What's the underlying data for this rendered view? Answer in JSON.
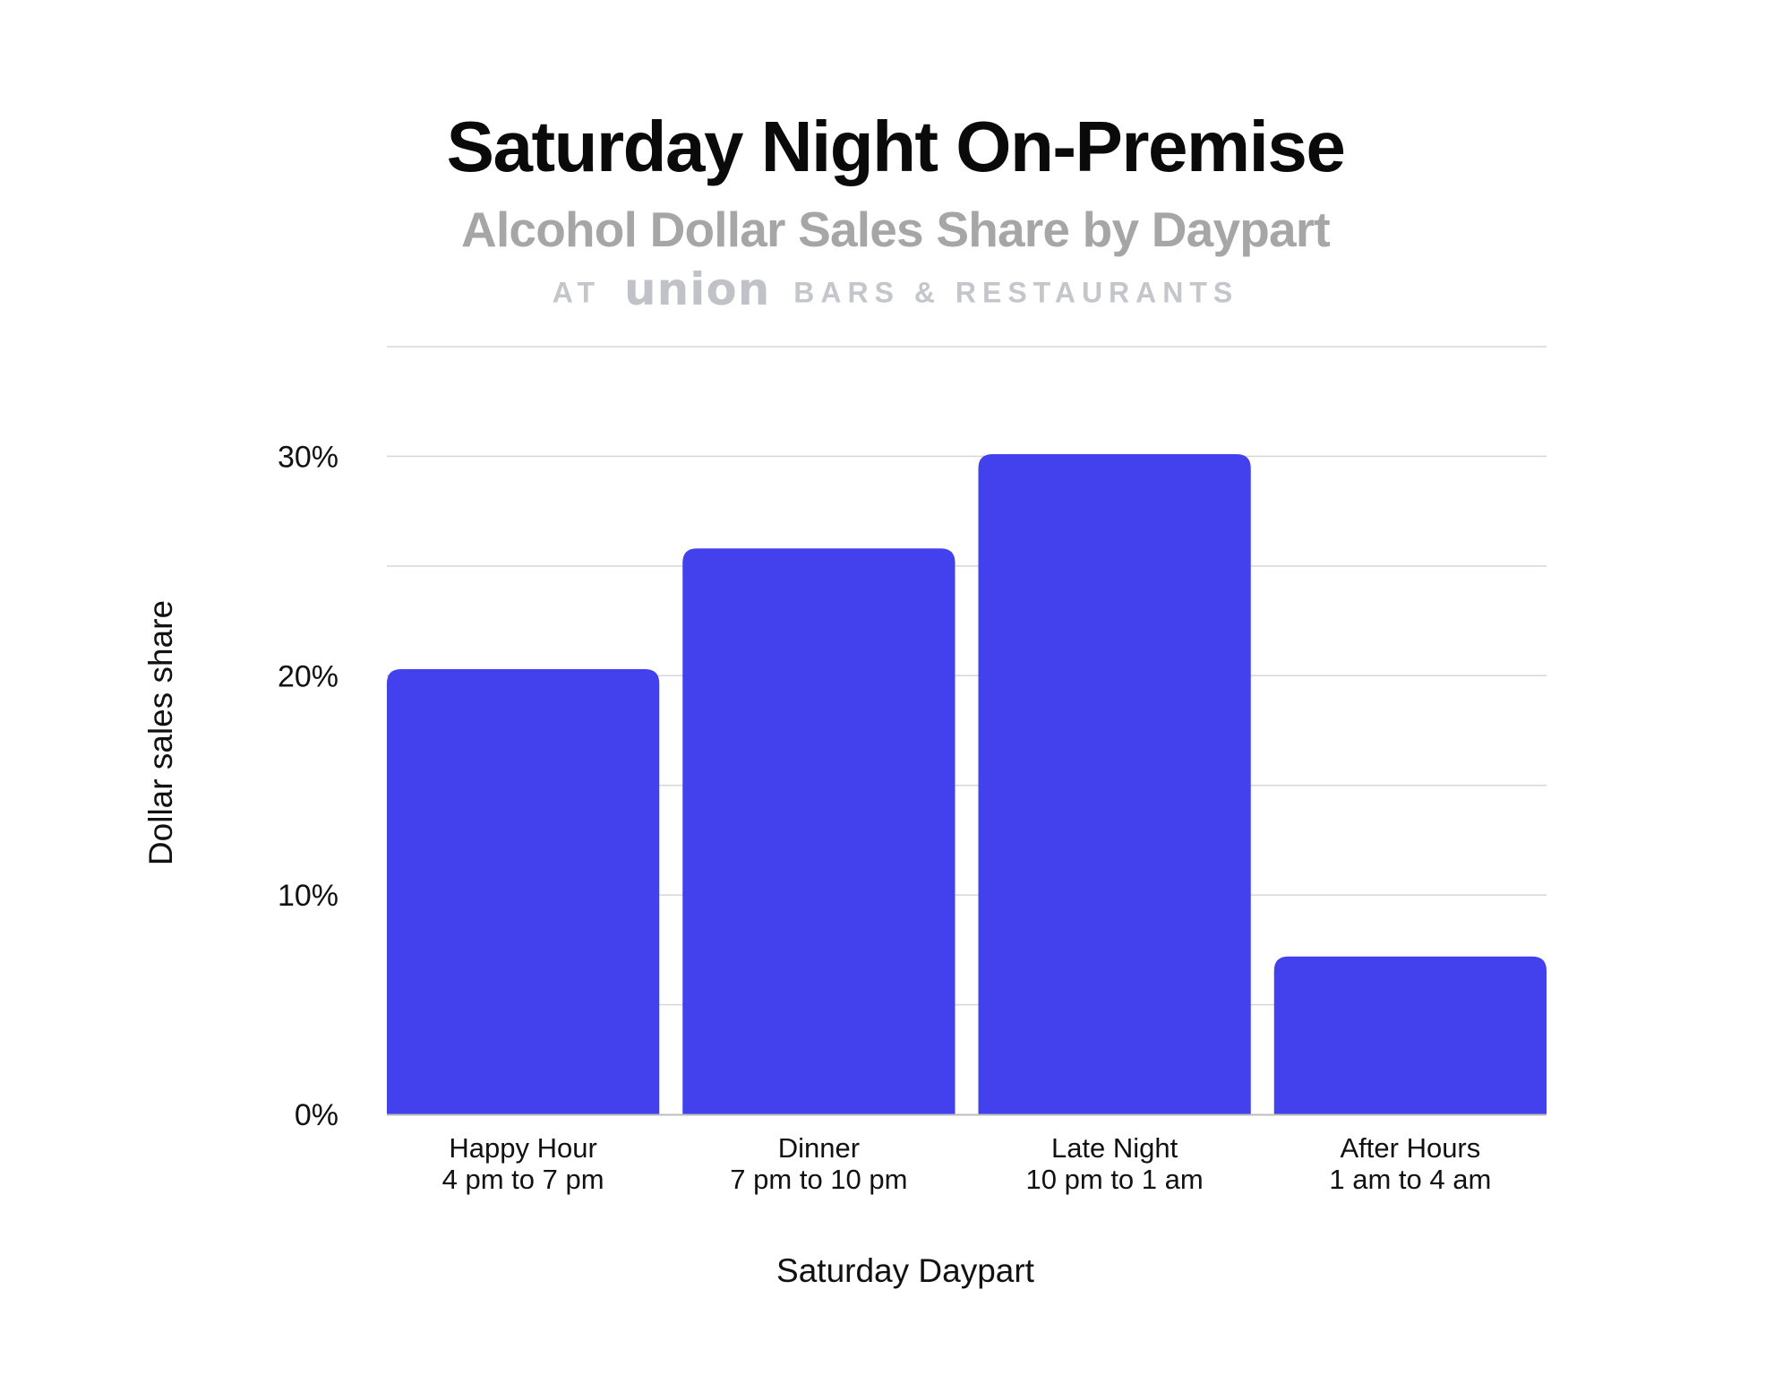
{
  "chart_data": {
    "type": "bar",
    "title": "Saturday Night On-Premise",
    "subtitle": "Alcohol Dollar Sales Share by Daypart",
    "byline": {
      "prefix": "AT",
      "brand": "union",
      "suffix": "BARS & RESTAURANTS"
    },
    "xlabel": "Saturday Daypart",
    "ylabel": "Dollar sales share",
    "categories": [
      {
        "name": "Happy Hour",
        "sub": "4 pm to 7 pm"
      },
      {
        "name": "Dinner",
        "sub": "7 pm to 10 pm"
      },
      {
        "name": "Late Night",
        "sub": "10 pm to 1 am"
      },
      {
        "name": "After Hours",
        "sub": "1 am to 4 am"
      }
    ],
    "values": [
      20.3,
      25.8,
      30.1,
      7.2
    ],
    "ylim": [
      0,
      35
    ],
    "yticks": [
      {
        "value": 0,
        "label": "0%"
      },
      {
        "value": 10,
        "label": "10%"
      },
      {
        "value": 20,
        "label": "20%"
      },
      {
        "value": 30,
        "label": "30%"
      }
    ],
    "gridlines": [
      5,
      10,
      15,
      20,
      25,
      30,
      35
    ],
    "grid": true,
    "legend": "none",
    "colors": {
      "bar": "#4340ee",
      "grid": "#d6d6d6",
      "baseline": "#bdbdbd"
    }
  }
}
